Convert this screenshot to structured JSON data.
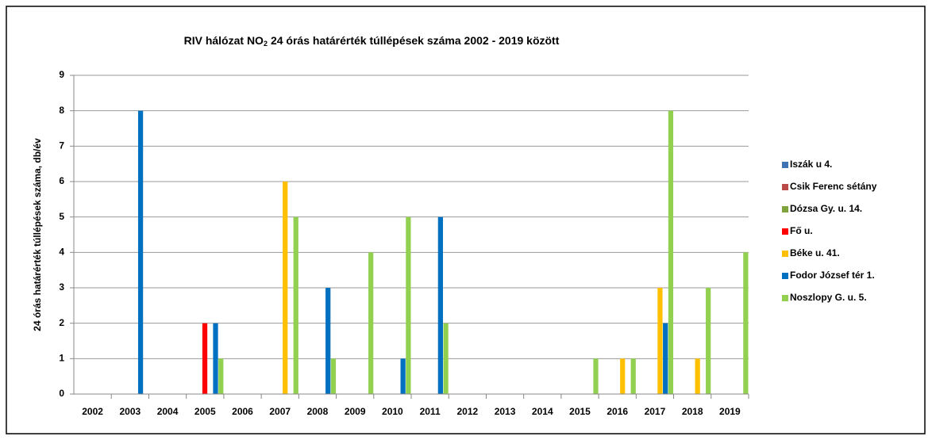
{
  "chart_data": {
    "type": "bar",
    "title": [
      "RIV hálózat NO",
      "2",
      "24 órás határérték túllépések száma 2002 - 2019 között"
    ],
    "y_label": "24 órás határérték túllépések száma, db/év",
    "categories": [
      "2002",
      "2003",
      "2004",
      "2005",
      "2006",
      "2007",
      "2008",
      "2009",
      "2010",
      "2011",
      "2012",
      "2013",
      "2014",
      "2015",
      "2016",
      "2017",
      "2018",
      "2019"
    ],
    "series": [
      {
        "name": "Iszák u 4.",
        "color": "#3f73b6",
        "values": [
          null,
          null,
          null,
          null,
          null,
          null,
          null,
          null,
          null,
          null,
          null,
          null,
          null,
          null,
          null,
          null,
          null,
          null
        ]
      },
      {
        "name": "Csik Ferenc sétány",
        "color": "#b94a48",
        "values": [
          null,
          null,
          null,
          null,
          null,
          null,
          null,
          null,
          null,
          null,
          null,
          null,
          null,
          null,
          null,
          null,
          null,
          null
        ]
      },
      {
        "name": "Dózsa Gy. u. 14.",
        "color": "#7fa33a",
        "values": [
          null,
          null,
          null,
          null,
          null,
          null,
          null,
          null,
          null,
          null,
          null,
          null,
          null,
          null,
          null,
          null,
          null,
          null
        ]
      },
      {
        "name": "Fő u.",
        "color": "#ff0000",
        "values": [
          null,
          null,
          null,
          2,
          null,
          null,
          null,
          null,
          null,
          null,
          null,
          null,
          null,
          null,
          null,
          null,
          null,
          null
        ]
      },
      {
        "name": "Béke u. 41.",
        "color": "#ffc000",
        "values": [
          null,
          null,
          null,
          null,
          null,
          6,
          null,
          null,
          null,
          null,
          null,
          null,
          null,
          null,
          1,
          3,
          1,
          null
        ]
      },
      {
        "name": "Fodor József tér 1.",
        "color": "#0070c0",
        "values": [
          null,
          8,
          null,
          2,
          null,
          null,
          3,
          null,
          1,
          5,
          null,
          null,
          null,
          null,
          null,
          2,
          null,
          null
        ]
      },
      {
        "name": "Noszlopy G. u. 5.",
        "color": "#92d050",
        "values": [
          null,
          null,
          null,
          1,
          null,
          5,
          1,
          4,
          5,
          2,
          null,
          null,
          null,
          1,
          1,
          8,
          3,
          4
        ]
      }
    ],
    "ylim": [
      0,
      9
    ],
    "yticks": [
      0,
      1,
      2,
      3,
      4,
      5,
      6,
      7,
      8,
      9
    ],
    "grid": true,
    "legend": "right"
  }
}
